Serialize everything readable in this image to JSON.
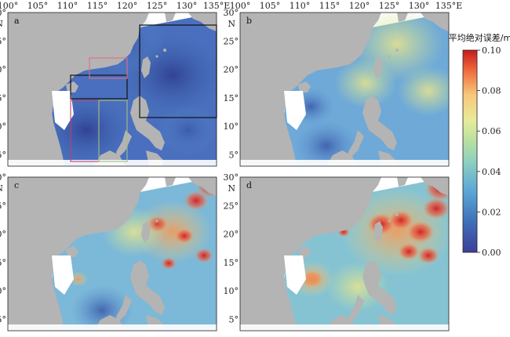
{
  "figure": {
    "panel_labels": [
      "a",
      "b",
      "c",
      "d"
    ],
    "lon_ticks": [
      "100°",
      "105°",
      "110°",
      "115°",
      "120°",
      "125°",
      "130°",
      "135°E"
    ],
    "lat_ticks": [
      "30°",
      "25°",
      "20°",
      "15°",
      "10°",
      "5°"
    ],
    "lat_unit": "N",
    "colorbar": {
      "title": "平均绝对误差/m",
      "ticks": [
        "0.10",
        "0.08",
        "0.06",
        "0.04",
        "0.02",
        "0.00"
      ],
      "range": [
        0.0,
        0.1
      ]
    },
    "colors": {
      "land": "#b4b4b4",
      "low": "#313695",
      "mid": "#a6d96a",
      "high": "#d7191c"
    }
  }
}
